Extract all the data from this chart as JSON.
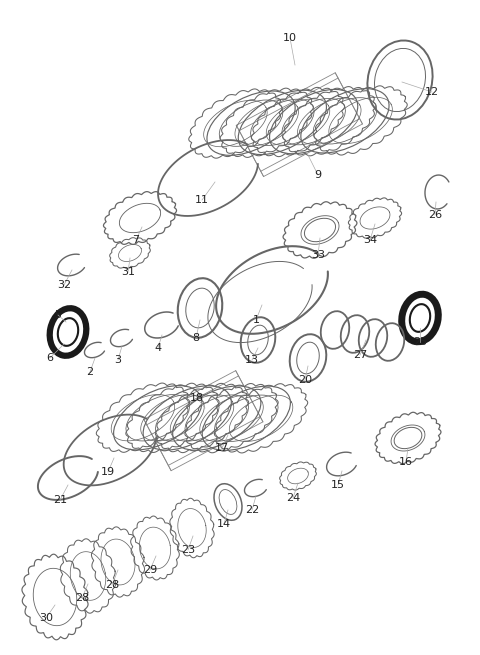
{
  "bg_color": "#ffffff",
  "lc": "#666666",
  "lc2": "#888888",
  "dc": "#111111",
  "fig_w": 4.8,
  "fig_h": 6.55,
  "dpi": 100
}
